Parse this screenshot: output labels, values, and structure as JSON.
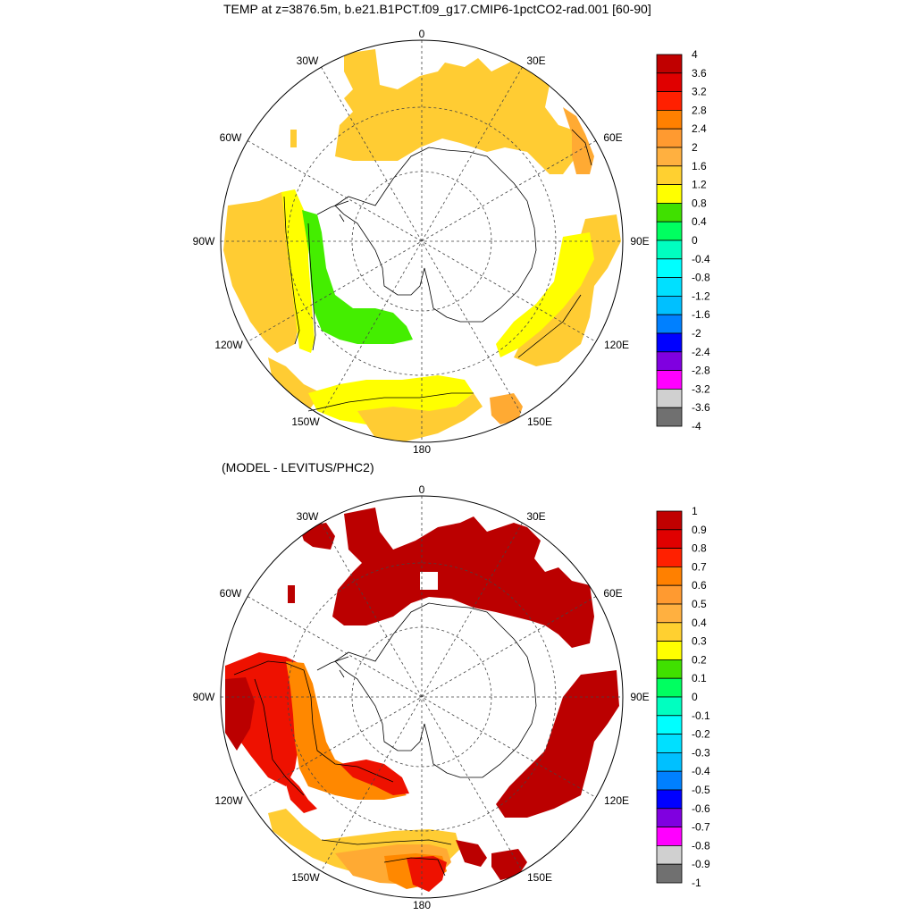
{
  "panel1": {
    "title": "TEMP at z=3876.5m, b.e21.B1PCT.f09_g17.CMIP6-1pctCO2-rad.001 [60-90]",
    "lon_labels": [
      "0",
      "30E",
      "60E",
      "90E",
      "120E",
      "150E",
      "180",
      "150W",
      "120W",
      "90W",
      "60W",
      "30W"
    ],
    "colorbar": {
      "labels": [
        "4",
        "3.6",
        "3.2",
        "2.8",
        "2.4",
        "2",
        "1.6",
        "1.2",
        "0.8",
        "0.4",
        "0",
        "-0.4",
        "-0.8",
        "-1.2",
        "-1.6",
        "-2",
        "-2.4",
        "-2.8",
        "-3.2",
        "-3.6",
        "-4"
      ],
      "colors": [
        "#c00000",
        "#e00000",
        "#ff2000",
        "#ff8000",
        "#ff9a30",
        "#ffb040",
        "#ffd030",
        "#ffff00",
        "#40e000",
        "#00ff60",
        "#00ffc0",
        "#00ffff",
        "#00e0ff",
        "#00c0ff",
        "#0080ff",
        "#0000ff",
        "#8000e0",
        "#ff00ff",
        "#d0d0d0",
        "#707070"
      ]
    }
  },
  "panel2": {
    "title": "(MODEL - LEVITUS/PHC2)",
    "lon_labels": [
      "0",
      "30E",
      "60E",
      "90E",
      "120E",
      "150E",
      "180",
      "150W",
      "120W",
      "90W",
      "60W",
      "30W"
    ],
    "colorbar": {
      "labels": [
        "1",
        "0.9",
        "0.8",
        "0.7",
        "0.6",
        "0.5",
        "0.4",
        "0.3",
        "0.2",
        "0.1",
        "0",
        "-0.1",
        "-0.2",
        "-0.3",
        "-0.4",
        "-0.5",
        "-0.6",
        "-0.7",
        "-0.8",
        "-0.9",
        "-1"
      ],
      "colors": [
        "#c00000",
        "#e00000",
        "#ff2000",
        "#ff8000",
        "#ff9a30",
        "#ffb040",
        "#ffd030",
        "#ffff00",
        "#40e000",
        "#00ff60",
        "#00ffc0",
        "#00ffff",
        "#00e0ff",
        "#00c0ff",
        "#0080ff",
        "#0000ff",
        "#8000e0",
        "#ff00ff",
        "#d0d0d0",
        "#707070"
      ]
    }
  },
  "colors": {
    "p1_orange": "#ffcc33",
    "p1_yellow": "#ffff00",
    "p1_green": "#44ee00",
    "p1_darkorange": "#ffaa33",
    "p2_darkred": "#bb0000",
    "p2_red": "#ee1100",
    "p2_orange": "#ff8800",
    "p2_lightorange": "#ffaa33",
    "p2_yellow": "#ffcc33"
  }
}
